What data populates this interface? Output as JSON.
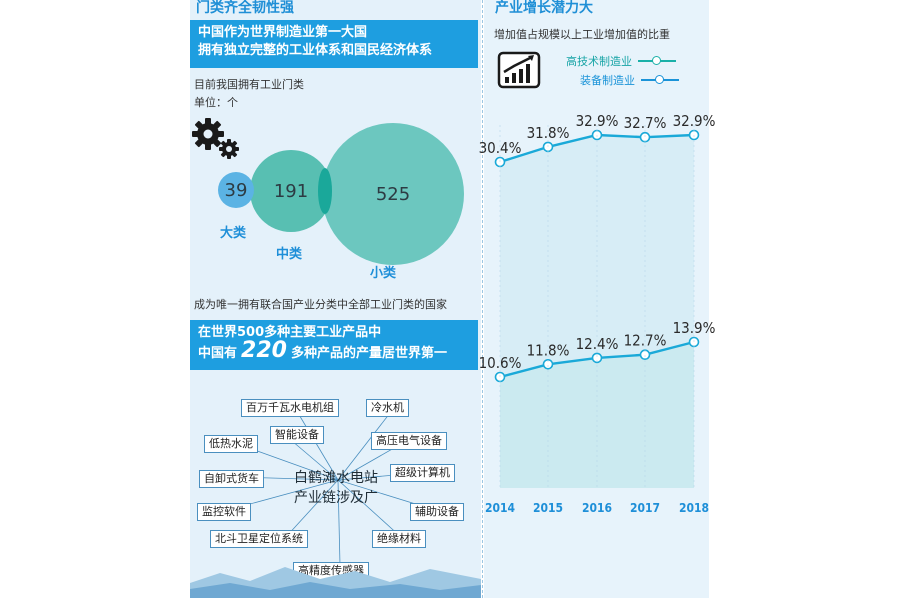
{
  "left": {
    "title": "门类齐全韧性强",
    "banner1": {
      "line1": "中国作为世界制造业第一大国",
      "line2": "拥有独立完整的工业体系和国民经济体系"
    },
    "subtitle": "目前我国拥有工业门类",
    "unit": "单位：个",
    "circles": [
      {
        "value": "39",
        "label": "大类"
      },
      {
        "value": "191",
        "label": "中类"
      },
      {
        "value": "525",
        "label": "小类"
      }
    ],
    "note": "成为唯一拥有联合国产业分类中全部工业门类的国家",
    "banner2": {
      "line1": "在世界500多种主要工业产品中",
      "line2_pre": "中国有",
      "line2_num": "220",
      "line2_post": "多种产品的产量居世界第一"
    },
    "hub": {
      "line1": "白鹤滩水电站",
      "line2": "产业链涉及广"
    },
    "tags": [
      "百万千瓦水电机组",
      "冷水机",
      "智能设备",
      "高压电气设备",
      "低热水泥",
      "超级计算机",
      "自卸式货车",
      "监控软件",
      "辅助设备",
      "北斗卫星定位系统",
      "绝缘材料",
      "高精度传感器"
    ],
    "icon": "gears-icon"
  },
  "right": {
    "title": "产业增长潜力大",
    "subtitle": "增加值占规模以上工业增加值的比重",
    "icon": "growth-chart-icon"
  },
  "chart_data": {
    "type": "line",
    "title": "增加值占规模以上工业增加值的比重",
    "categories": [
      "2014",
      "2015",
      "2016",
      "2017",
      "2018"
    ],
    "series": [
      {
        "name": "高技术制造业",
        "values": [
          10.6,
          11.8,
          12.4,
          12.7,
          13.9
        ],
        "labels": [
          "10.6%",
          "11.8%",
          "12.4%",
          "12.7%",
          "13.9%"
        ],
        "color": "#1aa9d8",
        "fill": "#c9e9ee"
      },
      {
        "name": "装备制造业",
        "values": [
          30.4,
          31.8,
          32.9,
          32.7,
          32.9
        ],
        "labels": [
          "30.4%",
          "31.8%",
          "32.9%",
          "32.7%",
          "32.9%"
        ],
        "color": "#1aa9d8",
        "fill": "#cbe8f3"
      }
    ],
    "legend": "top-right",
    "grid": false
  },
  "colors": {
    "accent": "#1e9ee0",
    "teal": "#5bc2b8",
    "title_blue": "#1f8fd6"
  }
}
